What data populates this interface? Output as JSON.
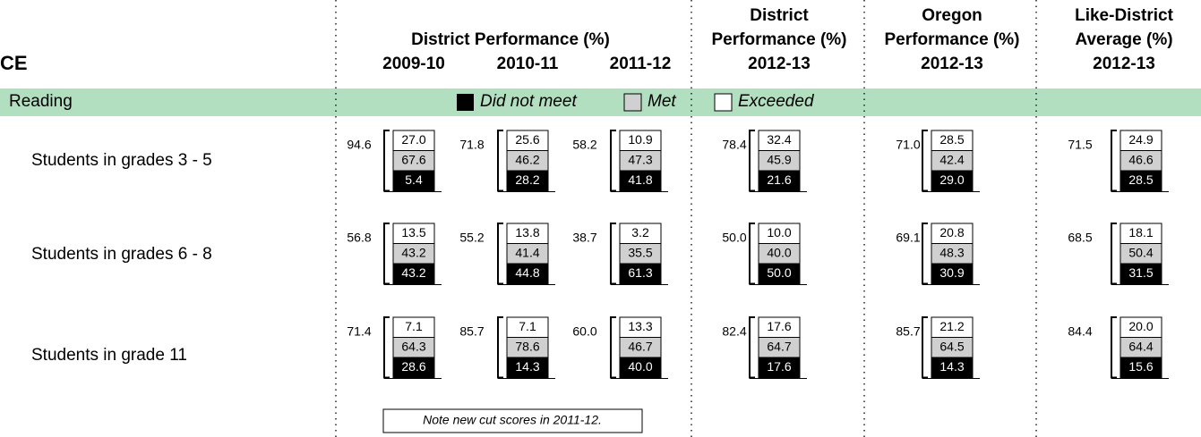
{
  "header": {
    "section_title": "CE",
    "group_title": "District Performance (%)",
    "years": [
      "2009-10",
      "2010-11",
      "2011-12"
    ],
    "columns": [
      {
        "lines": [
          "District",
          "Performance (%)",
          "2012-13"
        ]
      },
      {
        "lines": [
          "Oregon",
          "Performance (%)",
          "2012-13"
        ]
      },
      {
        "lines": [
          "Like-District",
          "Average (%)",
          "2012-13"
        ]
      }
    ]
  },
  "section": {
    "title": "Reading",
    "legend": [
      "Did not meet",
      "Met",
      "Exceeded"
    ]
  },
  "rows": [
    {
      "label": "Students in grades 3 - 5",
      "cells": [
        {
          "total": "94.6",
          "exceeded": "27.0",
          "met": "67.6",
          "did_not_meet": "5.4"
        },
        {
          "total": "71.8",
          "exceeded": "25.6",
          "met": "46.2",
          "did_not_meet": "28.2"
        },
        {
          "total": "58.2",
          "exceeded": "10.9",
          "met": "47.3",
          "did_not_meet": "41.8"
        },
        {
          "total": "78.4",
          "exceeded": "32.4",
          "met": "45.9",
          "did_not_meet": "21.6"
        },
        {
          "total": "71.0",
          "exceeded": "28.5",
          "met": "42.4",
          "did_not_meet": "29.0"
        },
        {
          "total": "71.5",
          "exceeded": "24.9",
          "met": "46.6",
          "did_not_meet": "28.5"
        }
      ]
    },
    {
      "label": "Students in grades 6 - 8",
      "cells": [
        {
          "total": "56.8",
          "exceeded": "13.5",
          "met": "43.2",
          "did_not_meet": "43.2"
        },
        {
          "total": "55.2",
          "exceeded": "13.8",
          "met": "41.4",
          "did_not_meet": "44.8"
        },
        {
          "total": "38.7",
          "exceeded": "3.2",
          "met": "35.5",
          "did_not_meet": "61.3"
        },
        {
          "total": "50.0",
          "exceeded": "10.0",
          "met": "40.0",
          "did_not_meet": "50.0"
        },
        {
          "total": "69.1",
          "exceeded": "20.8",
          "met": "48.3",
          "did_not_meet": "30.9"
        },
        {
          "total": "68.5",
          "exceeded": "18.1",
          "met": "50.4",
          "did_not_meet": "31.5"
        }
      ]
    },
    {
      "label": "Students in grade 11",
      "cells": [
        {
          "total": "71.4",
          "exceeded": "7.1",
          "met": "64.3",
          "did_not_meet": "28.6"
        },
        {
          "total": "85.7",
          "exceeded": "7.1",
          "met": "78.6",
          "did_not_meet": "14.3"
        },
        {
          "total": "60.0",
          "exceeded": "13.3",
          "met": "46.7",
          "did_not_meet": "40.0"
        },
        {
          "total": "82.4",
          "exceeded": "17.6",
          "met": "64.7",
          "did_not_meet": "17.6"
        },
        {
          "total": "85.7",
          "exceeded": "21.2",
          "met": "64.5",
          "did_not_meet": "14.3"
        },
        {
          "total": "84.4",
          "exceeded": "20.0",
          "met": "64.4",
          "did_not_meet": "15.6"
        }
      ]
    }
  ],
  "note": "Note new cut scores in 2011-12."
}
